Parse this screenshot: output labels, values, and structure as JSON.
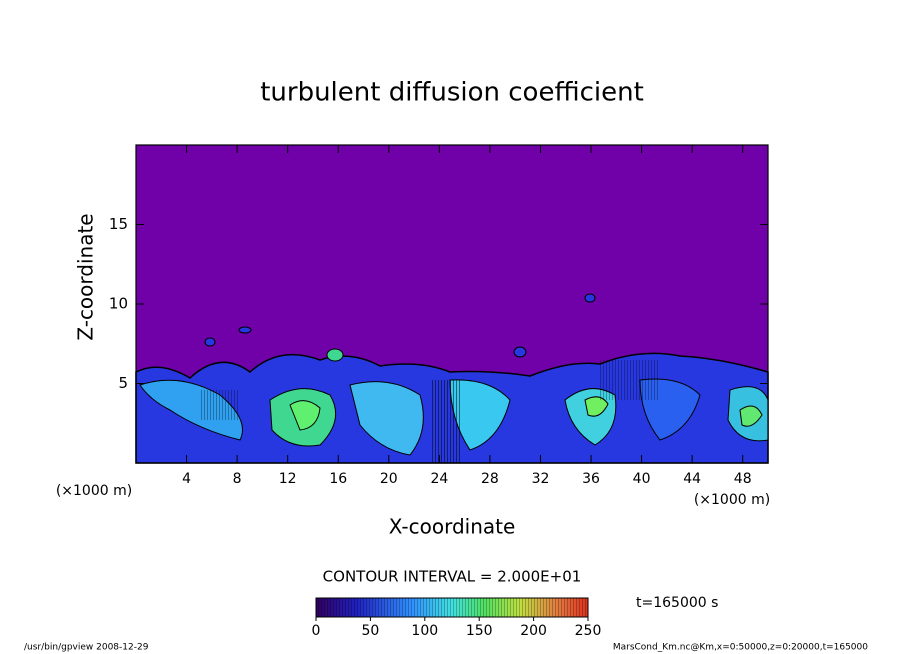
{
  "chart_data": {
    "type": "contour",
    "title": "turbulent diffusion coefficient",
    "xlabel": "X-coordinate",
    "ylabel": "Z-coordinate",
    "unit_label": "(×1000 m)",
    "xlim": [
      0,
      50
    ],
    "xticks": [
      4,
      8,
      12,
      16,
      20,
      24,
      28,
      32,
      36,
      40,
      44,
      48
    ],
    "ylim": [
      0,
      20
    ],
    "yticks": [
      5,
      10,
      15
    ],
    "contour_interval": "CONTOUR INTERVAL = 2.000E+01",
    "time": "t=165000 s",
    "colorbar": {
      "lim": [
        0,
        250
      ],
      "ticks": [
        0,
        50,
        100,
        150,
        200,
        250
      ]
    },
    "footer_left": "/usr/bin/gpview  2008-12-29",
    "footer_right": "MarsCond_Km.nc@Km,x=0:50000,z=0:20000,t=165000"
  }
}
